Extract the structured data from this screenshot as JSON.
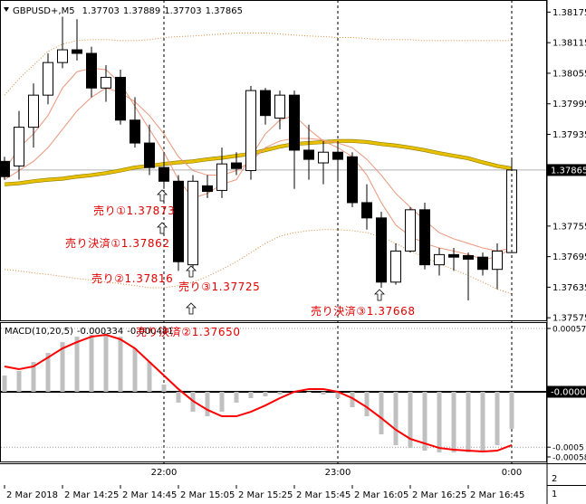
{
  "chart_data": [
    {
      "type": "candlestick",
      "title": "GBPUSD+,M5",
      "categories": [
        "2 Mar 2018",
        null,
        null,
        null,
        "2 Mar 14:25",
        null,
        null,
        null,
        "2 Mar 14:45",
        null,
        null,
        null,
        "2 Mar 15:05",
        null,
        null,
        null,
        "2 Mar 15:25",
        null,
        null,
        null,
        "2 Mar 15:45",
        null,
        null,
        null,
        "2 Mar 16:05",
        null,
        null,
        null,
        "2 Mar 16:25",
        null,
        null,
        null,
        "2 Mar 16:45",
        null,
        null,
        null
      ],
      "x2_categories": [
        null,
        null,
        null,
        null,
        null,
        null,
        null,
        null,
        null,
        null,
        null,
        "22:00",
        null,
        null,
        null,
        null,
        null,
        null,
        null,
        null,
        null,
        null,
        null,
        "23:00",
        null,
        null,
        null,
        null,
        null,
        null,
        null,
        null,
        null,
        null,
        null,
        "0:00"
      ],
      "ylim": [
        1.3757,
        1.38197
      ],
      "yticks": [
        1.38175,
        1.38115,
        1.38055,
        1.37995,
        1.37935,
        1.37755,
        1.37695,
        1.37635,
        1.37575
      ],
      "candles": {
        "open": [
          1.37882,
          1.37873,
          1.37949,
          1.38012,
          1.38076,
          1.38101,
          1.38094,
          1.38026,
          1.38047,
          1.37963,
          1.37918,
          1.3787,
          1.37843,
          1.37679,
          1.37834,
          1.37825,
          1.37879,
          1.37864,
          1.38021,
          1.37967,
          1.38012,
          1.37904,
          1.37879,
          1.379,
          1.37891,
          1.37801,
          1.37771,
          1.37645,
          1.37706,
          1.37787,
          1.37679,
          1.37699,
          1.37697,
          1.37694,
          1.3767,
          1.37703
        ],
        "high": [
          1.37891,
          1.37981,
          1.38035,
          1.38094,
          1.38166,
          1.38161,
          1.38107,
          1.38071,
          1.38062,
          1.38008,
          1.37954,
          1.379,
          1.37855,
          1.37855,
          1.37855,
          1.37909,
          1.379,
          1.3803,
          1.38026,
          1.38021,
          1.38021,
          1.37954,
          1.37922,
          1.37918,
          1.379,
          1.37837,
          1.37783,
          1.37721,
          1.37792,
          1.37801,
          1.37712,
          1.37712,
          1.37703,
          1.37703,
          1.37721,
          1.37889
        ],
        "low": [
          1.37846,
          1.37846,
          1.37909,
          1.37994,
          1.38065,
          1.3808,
          1.38008,
          1.37999,
          1.37954,
          1.37909,
          1.37855,
          1.37828,
          1.37667,
          1.37667,
          1.3781,
          1.3781,
          1.37855,
          1.37846,
          1.37954,
          1.37945,
          1.37828,
          1.37846,
          1.37837,
          1.37846,
          1.37792,
          1.37748,
          1.37634,
          1.3764,
          1.37703,
          1.3767,
          1.37658,
          1.37667,
          1.37609,
          1.37658,
          1.37631,
          1.37703
        ],
        "close": [
          1.37852,
          1.37949,
          1.38012,
          1.38076,
          1.38101,
          1.38094,
          1.38026,
          1.38047,
          1.37963,
          1.37918,
          1.3787,
          1.37843,
          1.37685,
          1.37843,
          1.37823,
          1.37877,
          1.37868,
          1.38021,
          1.37972,
          1.38012,
          1.37904,
          1.37886,
          1.379,
          1.37886,
          1.37801,
          1.37771,
          1.37645,
          1.37706,
          1.37787,
          1.37679,
          1.37699,
          1.37694,
          1.3769,
          1.3767,
          1.37706,
          1.37865
        ],
        "up_color": "#ffffff",
        "down_color": "#000000"
      },
      "series": [
        {
          "color": "#d98a3a",
          "style": "dotted",
          "values": [
            1.38012,
            1.38044,
            1.38071,
            1.38098,
            1.38112,
            1.38119,
            1.38121,
            1.38121,
            1.38119,
            1.38119,
            1.38121,
            1.38125,
            1.38127,
            1.38128,
            1.3813,
            1.38132,
            1.38134,
            1.38134,
            1.38134,
            1.38132,
            1.3813,
            1.38128,
            1.38127,
            1.38125,
            1.38125,
            1.38123,
            1.38121,
            1.38121,
            1.38121,
            1.38119,
            1.38119,
            1.38119,
            1.38119,
            1.38119,
            1.38119,
            1.38119
          ]
        },
        {
          "color": "#d98a3a",
          "style": "dotted",
          "values": [
            1.3767,
            1.37667,
            1.37663,
            1.3766,
            1.37656,
            1.37652,
            1.37649,
            1.37645,
            1.37642,
            1.37638,
            1.37634,
            1.37634,
            1.37638,
            1.37645,
            1.37656,
            1.3767,
            1.37685,
            1.37703,
            1.37721,
            1.37735,
            1.37742,
            1.37746,
            1.37748,
            1.37748,
            1.37746,
            1.37742,
            1.37733,
            1.37721,
            1.37706,
            1.37694,
            1.37681,
            1.3767,
            1.37658,
            1.37645,
            1.37631,
            1.37622
          ]
        },
        {
          "color": "#e8c000",
          "style": "thick",
          "values": [
            1.37837,
            1.37839,
            1.37843,
            1.37846,
            1.37848,
            1.37852,
            1.37855,
            1.37859,
            1.37864,
            1.3787,
            1.37873,
            1.37877,
            1.3788,
            1.37882,
            1.37886,
            1.37889,
            1.37893,
            1.37897,
            1.37904,
            1.37911,
            1.37916,
            1.37918,
            1.3792,
            1.37922,
            1.37922,
            1.3792,
            1.37916,
            1.37913,
            1.37909,
            1.37904,
            1.37898,
            1.37893,
            1.37888,
            1.3788,
            1.37873,
            1.37868
          ]
        },
        {
          "color": "#e9967a",
          "style": "solid",
          "values": [
            1.37846,
            1.37864,
            1.37882,
            1.37909,
            1.37945,
            1.37981,
            1.38008,
            1.38026,
            1.38017,
            1.37999,
            1.37972,
            1.37936,
            1.37891,
            1.37864,
            1.37855,
            1.37855,
            1.37864,
            1.37882,
            1.37909,
            1.37922,
            1.37927,
            1.37927,
            1.37924,
            1.37918,
            1.37909,
            1.37886,
            1.37855,
            1.37819,
            1.37792,
            1.37766,
            1.37742,
            1.3773,
            1.37721,
            1.37712,
            1.37706,
            1.37712
          ]
        },
        {
          "color": "#e9967a",
          "style": "solid",
          "values": [
            1.37864,
            1.37909,
            1.37936,
            1.37972,
            1.38026,
            1.38058,
            1.38065,
            1.38062,
            1.38035,
            1.3799,
            1.37945,
            1.379,
            1.37846,
            1.3781,
            1.37819,
            1.37837,
            1.37846,
            1.37891,
            1.37936,
            1.37963,
            1.37972,
            1.37945,
            1.37922,
            1.37909,
            1.37891,
            1.37855,
            1.37801,
            1.37757,
            1.37735,
            1.37721,
            1.37712,
            1.37706,
            1.37699,
            1.3769,
            1.37694,
            1.37712
          ]
        }
      ],
      "annotations": [
        "売り①1.37873",
        "売り決済①1.37862",
        "売り②1.37816",
        "売り③1.37725",
        "売り決済③1.37668",
        "売り決済②1.37650"
      ]
    },
    {
      "type": "macd",
      "title": "MACD(10,20,5)",
      "ylim": [
        -0.000629,
        0.000621
      ],
      "yticks": [
        0.000572,
        {
          "value": 0,
          "label": "-0.00000"
        },
        {
          "value": -0.0005,
          "label": "-0.0005"
        },
        -0.000588
      ],
      "series": [
        {
          "type": "bar",
          "color": "#c0c0c0",
          "values": [
            0.000147,
            0.000188,
            0.00027,
            0.000351,
            0.000449,
            0.000498,
            0.000515,
            0.000531,
            0.000498,
            0.000392,
            0.00027,
            6.5e-05,
            -9.8e-05,
            -0.00018,
            -0.000221,
            -0.00018,
            -9.8e-05,
            -5.7e-05,
            -4.1e-05,
            -2.5e-05,
            0,
            -8e-06,
            -2.5e-05,
            -5.7e-05,
            -0.000139,
            -0.000221,
            -0.000384,
            -0.000482,
            -0.000507,
            -0.000531,
            -0.000547,
            -0.000547,
            -0.000547,
            -0.000531,
            -0.000482,
            -0.000334
          ]
        },
        {
          "type": "line",
          "color": "#ff0000",
          "values": [
            0.000229,
            0.000204,
            0.000229,
            0.00031,
            0.000392,
            0.000449,
            0.000498,
            0.000515,
            0.000474,
            0.000392,
            0.00027,
            0.000147,
            2.5e-05,
            -8.2e-05,
            -0.000163,
            -0.000221,
            -0.000221,
            -0.00018,
            -0.000123,
            -5.7e-05,
            0,
            2.5e-05,
            2.5e-05,
            0,
            -5.7e-05,
            -0.000139,
            -0.000237,
            -0.000343,
            -0.000425,
            -0.000466,
            -0.000507,
            -0.000523,
            -0.000531,
            -0.000539,
            -0.000531,
            -0.000481
          ]
        }
      ]
    }
  ],
  "window_labels": [
    "2",
    "1"
  ]
}
